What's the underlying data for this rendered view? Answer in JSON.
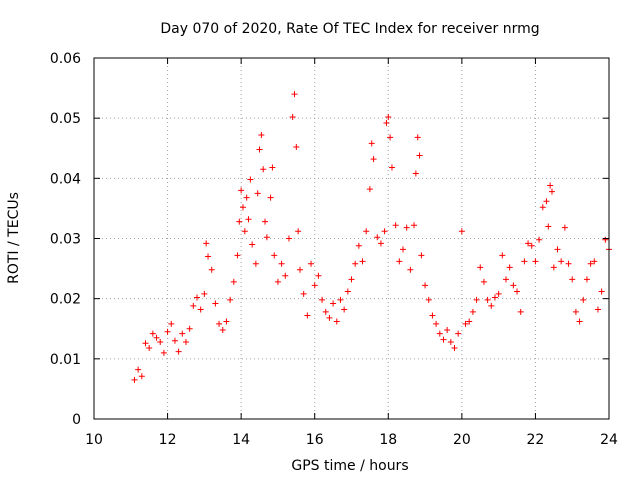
{
  "chart_data": {
    "type": "scatter",
    "title": "Day 070 of 2020, Rate Of TEC Index for receiver nrmg",
    "xlabel": "GPS time / hours",
    "ylabel": "ROTI / TECUs",
    "xlim": [
      10,
      24
    ],
    "ylim": [
      0,
      0.06
    ],
    "xticks": [
      "10",
      "12",
      "14",
      "16",
      "18",
      "20",
      "22",
      "24"
    ],
    "yticks": [
      "0",
      "0.01",
      "0.02",
      "0.03",
      "0.04",
      "0.05",
      "0.06"
    ],
    "grid": true,
    "marker": "plus",
    "color": "#ff0000",
    "series": [
      {
        "name": "ROTI",
        "points": [
          [
            11.1,
            0.0065
          ],
          [
            11.2,
            0.0082
          ],
          [
            11.3,
            0.0071
          ],
          [
            11.4,
            0.0126
          ],
          [
            11.5,
            0.0118
          ],
          [
            11.6,
            0.0142
          ],
          [
            11.7,
            0.0135
          ],
          [
            11.8,
            0.0128
          ],
          [
            11.9,
            0.011
          ],
          [
            12.0,
            0.0145
          ],
          [
            12.1,
            0.0158
          ],
          [
            12.2,
            0.013
          ],
          [
            12.3,
            0.0112
          ],
          [
            12.4,
            0.0142
          ],
          [
            12.5,
            0.0128
          ],
          [
            12.6,
            0.015
          ],
          [
            12.7,
            0.0188
          ],
          [
            12.8,
            0.0202
          ],
          [
            12.9,
            0.0182
          ],
          [
            13.0,
            0.0208
          ],
          [
            13.05,
            0.0292
          ],
          [
            13.1,
            0.027
          ],
          [
            13.2,
            0.0248
          ],
          [
            13.3,
            0.0192
          ],
          [
            13.4,
            0.0158
          ],
          [
            13.5,
            0.0148
          ],
          [
            13.6,
            0.0162
          ],
          [
            13.7,
            0.0198
          ],
          [
            13.8,
            0.0228
          ],
          [
            13.9,
            0.0272
          ],
          [
            13.95,
            0.0328
          ],
          [
            14.0,
            0.038
          ],
          [
            14.05,
            0.0352
          ],
          [
            14.1,
            0.0312
          ],
          [
            14.15,
            0.0368
          ],
          [
            14.2,
            0.0332
          ],
          [
            14.25,
            0.0398
          ],
          [
            14.3,
            0.029
          ],
          [
            14.4,
            0.0258
          ],
          [
            14.45,
            0.0375
          ],
          [
            14.5,
            0.0448
          ],
          [
            14.55,
            0.0472
          ],
          [
            14.6,
            0.0415
          ],
          [
            14.65,
            0.0328
          ],
          [
            14.7,
            0.0302
          ],
          [
            14.8,
            0.0368
          ],
          [
            14.85,
            0.0418
          ],
          [
            14.9,
            0.0272
          ],
          [
            15.0,
            0.0228
          ],
          [
            15.1,
            0.0258
          ],
          [
            15.2,
            0.0238
          ],
          [
            15.3,
            0.03
          ],
          [
            15.4,
            0.0502
          ],
          [
            15.45,
            0.054
          ],
          [
            15.5,
            0.0452
          ],
          [
            15.55,
            0.0312
          ],
          [
            15.6,
            0.0248
          ],
          [
            15.7,
            0.0208
          ],
          [
            15.8,
            0.0172
          ],
          [
            15.9,
            0.0258
          ],
          [
            16.0,
            0.0222
          ],
          [
            16.1,
            0.0238
          ],
          [
            16.2,
            0.0198
          ],
          [
            16.3,
            0.0178
          ],
          [
            16.4,
            0.0168
          ],
          [
            16.5,
            0.0192
          ],
          [
            16.6,
            0.0162
          ],
          [
            16.7,
            0.0198
          ],
          [
            16.8,
            0.0182
          ],
          [
            16.9,
            0.0212
          ],
          [
            17.0,
            0.0232
          ],
          [
            17.1,
            0.0258
          ],
          [
            17.2,
            0.0288
          ],
          [
            17.3,
            0.0262
          ],
          [
            17.4,
            0.0312
          ],
          [
            17.5,
            0.0382
          ],
          [
            17.55,
            0.0458
          ],
          [
            17.6,
            0.0432
          ],
          [
            17.7,
            0.0302
          ],
          [
            17.8,
            0.0292
          ],
          [
            17.9,
            0.0312
          ],
          [
            17.95,
            0.0492
          ],
          [
            18.0,
            0.0502
          ],
          [
            18.05,
            0.0468
          ],
          [
            18.1,
            0.0418
          ],
          [
            18.2,
            0.0322
          ],
          [
            18.3,
            0.0262
          ],
          [
            18.4,
            0.0282
          ],
          [
            18.5,
            0.0318
          ],
          [
            18.6,
            0.0248
          ],
          [
            18.7,
            0.0322
          ],
          [
            18.75,
            0.0408
          ],
          [
            18.8,
            0.0468
          ],
          [
            18.85,
            0.0438
          ],
          [
            18.9,
            0.0272
          ],
          [
            19.0,
            0.0222
          ],
          [
            19.1,
            0.0198
          ],
          [
            19.2,
            0.0172
          ],
          [
            19.3,
            0.0158
          ],
          [
            19.4,
            0.0142
          ],
          [
            19.5,
            0.0132
          ],
          [
            19.6,
            0.0148
          ],
          [
            19.7,
            0.0128
          ],
          [
            19.8,
            0.0118
          ],
          [
            19.9,
            0.0142
          ],
          [
            20.0,
            0.0312
          ],
          [
            20.1,
            0.0158
          ],
          [
            20.2,
            0.0162
          ],
          [
            20.3,
            0.0178
          ],
          [
            20.4,
            0.0198
          ],
          [
            20.5,
            0.0252
          ],
          [
            20.6,
            0.0228
          ],
          [
            20.7,
            0.0198
          ],
          [
            20.8,
            0.0188
          ],
          [
            20.9,
            0.0202
          ],
          [
            21.0,
            0.0208
          ],
          [
            21.1,
            0.0272
          ],
          [
            21.2,
            0.0232
          ],
          [
            21.3,
            0.0252
          ],
          [
            21.4,
            0.0222
          ],
          [
            21.5,
            0.0212
          ],
          [
            21.6,
            0.0178
          ],
          [
            21.7,
            0.0262
          ],
          [
            21.8,
            0.0292
          ],
          [
            21.9,
            0.0288
          ],
          [
            22.0,
            0.0262
          ],
          [
            22.1,
            0.0298
          ],
          [
            22.2,
            0.0352
          ],
          [
            22.3,
            0.0362
          ],
          [
            22.35,
            0.032
          ],
          [
            22.4,
            0.0388
          ],
          [
            22.45,
            0.0378
          ],
          [
            22.5,
            0.0252
          ],
          [
            22.6,
            0.0282
          ],
          [
            22.7,
            0.0262
          ],
          [
            22.8,
            0.0318
          ],
          [
            22.9,
            0.0258
          ],
          [
            23.0,
            0.0232
          ],
          [
            23.1,
            0.0178
          ],
          [
            23.2,
            0.0162
          ],
          [
            23.3,
            0.0198
          ],
          [
            23.4,
            0.0232
          ],
          [
            23.5,
            0.0258
          ],
          [
            23.6,
            0.0262
          ],
          [
            23.7,
            0.0182
          ],
          [
            23.8,
            0.0212
          ],
          [
            23.9,
            0.0298
          ],
          [
            24.0,
            0.0282
          ]
        ]
      }
    ]
  }
}
